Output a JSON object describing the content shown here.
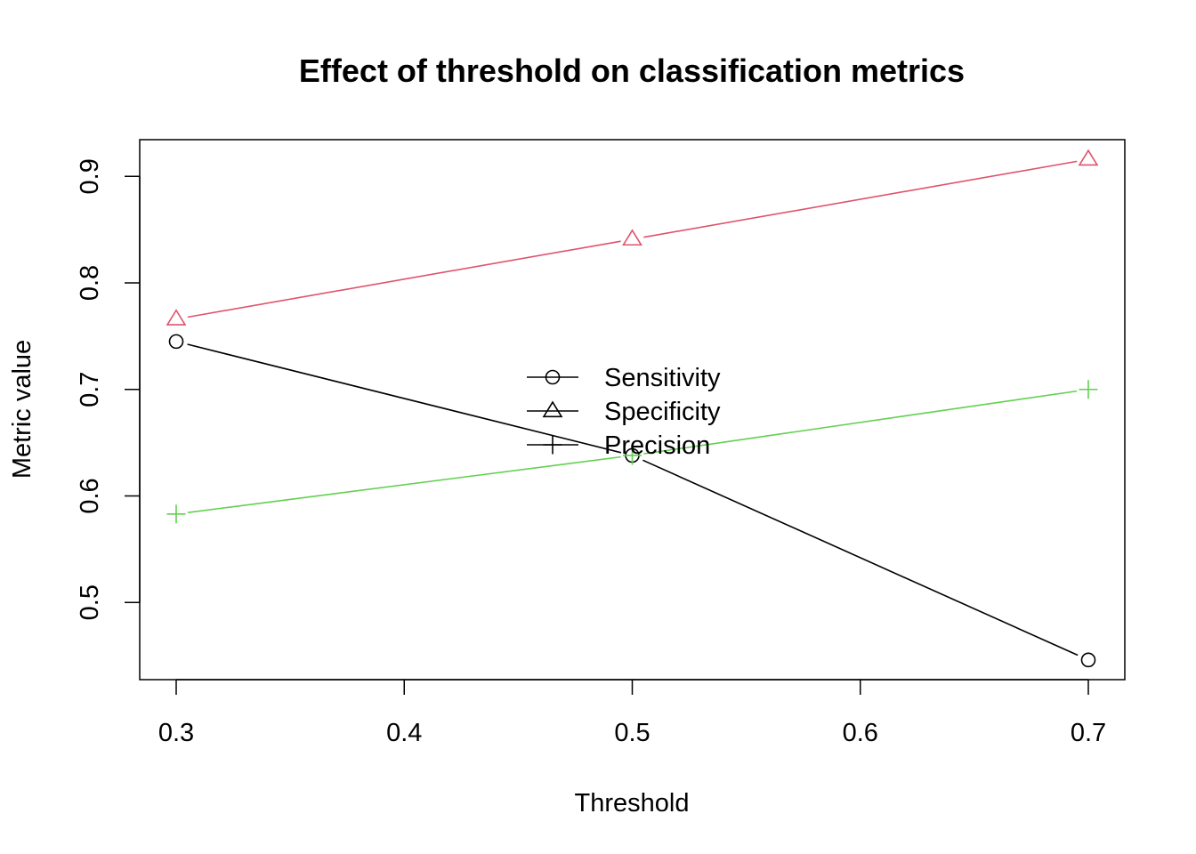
{
  "chart_data": {
    "type": "line",
    "title": "Effect of threshold on classification metrics",
    "xlabel": "Threshold",
    "ylabel": "Metric value",
    "x": [
      0.3,
      0.5,
      0.7
    ],
    "xlim": [
      0.284,
      0.716
    ],
    "ylim": [
      0.4275,
      0.9345
    ],
    "xticks": [
      0.3,
      0.4,
      0.5,
      0.6,
      0.7
    ],
    "xtick_labels": [
      "0.3",
      "0.4",
      "0.5",
      "0.6",
      "0.7"
    ],
    "yticks": [
      0.5,
      0.6,
      0.7,
      0.8,
      0.9
    ],
    "ytick_labels": [
      "0.5",
      "0.6",
      "0.7",
      "0.8",
      "0.9"
    ],
    "grid": false,
    "legend_position": "center",
    "series": [
      {
        "name": "Sensitivity",
        "values": [
          0.745,
          0.638,
          0.446
        ],
        "color": "#000000",
        "marker": "circle"
      },
      {
        "name": "Specificity",
        "values": [
          0.766,
          0.841,
          0.916
        ],
        "color": "#DF536B",
        "marker": "triangle"
      },
      {
        "name": "Precision",
        "values": [
          0.583,
          0.638,
          0.7
        ],
        "color": "#61D04F",
        "marker": "plus"
      }
    ]
  }
}
